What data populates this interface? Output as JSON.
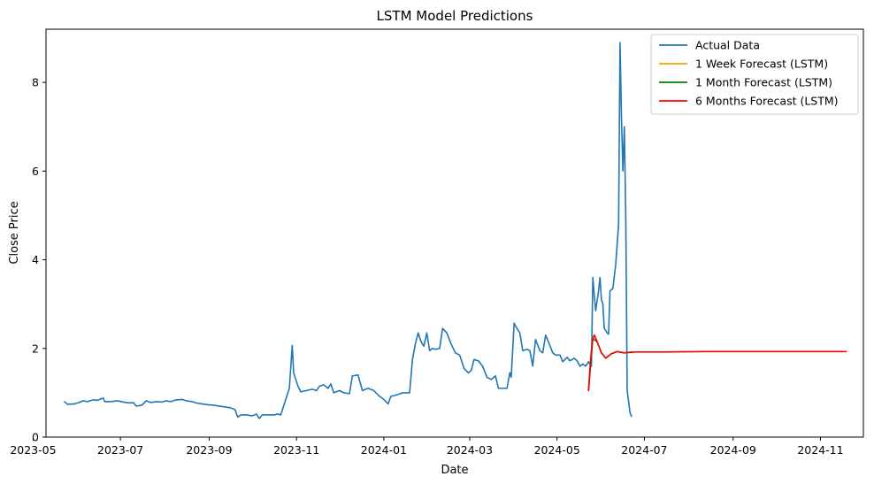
{
  "chart_data": {
    "type": "line",
    "title": "LSTM Model Predictions",
    "xlabel": "Date",
    "ylabel": "Close Price",
    "xlim": [
      "2023-05-10",
      "2024-12-01"
    ],
    "ylim": [
      0,
      9.2
    ],
    "x_ticks": [
      "2023-05",
      "2023-07",
      "2023-09",
      "2023-11",
      "2024-01",
      "2024-03",
      "2024-05",
      "2024-07",
      "2024-09",
      "2024-11"
    ],
    "y_ticks": [
      0,
      2,
      4,
      6,
      8
    ],
    "legend_position": "top-right",
    "grid": false,
    "series": [
      {
        "name": "Actual Data",
        "color": "#1f77b4",
        "points": [
          [
            "2023-05-23",
            0.8
          ],
          [
            "2023-05-25",
            0.74
          ],
          [
            "2023-05-30",
            0.75
          ],
          [
            "2023-06-02",
            0.78
          ],
          [
            "2023-06-05",
            0.82
          ],
          [
            "2023-06-08",
            0.8
          ],
          [
            "2023-06-12",
            0.84
          ],
          [
            "2023-06-15",
            0.83
          ],
          [
            "2023-06-19",
            0.88
          ],
          [
            "2023-06-20",
            0.8
          ],
          [
            "2023-06-24",
            0.8
          ],
          [
            "2023-06-29",
            0.82
          ],
          [
            "2023-07-03",
            0.79
          ],
          [
            "2023-07-07",
            0.77
          ],
          [
            "2023-07-10",
            0.78
          ],
          [
            "2023-07-12",
            0.7
          ],
          [
            "2023-07-16",
            0.72
          ],
          [
            "2023-07-19",
            0.82
          ],
          [
            "2023-07-22",
            0.78
          ],
          [
            "2023-07-26",
            0.8
          ],
          [
            "2023-07-30",
            0.79
          ],
          [
            "2023-08-02",
            0.82
          ],
          [
            "2023-08-05",
            0.8
          ],
          [
            "2023-08-09",
            0.84
          ],
          [
            "2023-08-13",
            0.85
          ],
          [
            "2023-08-16",
            0.82
          ],
          [
            "2023-08-20",
            0.8
          ],
          [
            "2023-08-23",
            0.77
          ],
          [
            "2023-08-27",
            0.75
          ],
          [
            "2023-08-31",
            0.73
          ],
          [
            "2023-09-04",
            0.72
          ],
          [
            "2023-09-08",
            0.7
          ],
          [
            "2023-09-12",
            0.68
          ],
          [
            "2023-09-16",
            0.66
          ],
          [
            "2023-09-19",
            0.62
          ],
          [
            "2023-09-21",
            0.45
          ],
          [
            "2023-09-23",
            0.5
          ],
          [
            "2023-09-27",
            0.5
          ],
          [
            "2023-10-01",
            0.48
          ],
          [
            "2023-10-04",
            0.52
          ],
          [
            "2023-10-06",
            0.42
          ],
          [
            "2023-10-08",
            0.5
          ],
          [
            "2023-10-12",
            0.5
          ],
          [
            "2023-10-16",
            0.5
          ],
          [
            "2023-10-19",
            0.52
          ],
          [
            "2023-10-21",
            0.5
          ],
          [
            "2023-10-24",
            0.8
          ],
          [
            "2023-10-27",
            1.1
          ],
          [
            "2023-10-29",
            2.07
          ],
          [
            "2023-10-30",
            1.45
          ],
          [
            "2023-11-02",
            1.15
          ],
          [
            "2023-11-04",
            1.02
          ],
          [
            "2023-11-08",
            1.05
          ],
          [
            "2023-11-12",
            1.08
          ],
          [
            "2023-11-15",
            1.05
          ],
          [
            "2023-11-17",
            1.15
          ],
          [
            "2023-11-20",
            1.18
          ],
          [
            "2023-11-23",
            1.1
          ],
          [
            "2023-11-25",
            1.2
          ],
          [
            "2023-11-27",
            1.0
          ],
          [
            "2023-12-01",
            1.05
          ],
          [
            "2023-12-04",
            1.0
          ],
          [
            "2023-12-08",
            0.98
          ],
          [
            "2023-12-10",
            1.38
          ],
          [
            "2023-12-14",
            1.4
          ],
          [
            "2023-12-17",
            1.05
          ],
          [
            "2023-12-21",
            1.1
          ],
          [
            "2023-12-25",
            1.05
          ],
          [
            "2023-12-29",
            0.92
          ],
          [
            "2024-01-01",
            0.85
          ],
          [
            "2024-01-04",
            0.75
          ],
          [
            "2024-01-06",
            0.92
          ],
          [
            "2024-01-10",
            0.95
          ],
          [
            "2024-01-14",
            1.0
          ],
          [
            "2024-01-19",
            1.0
          ],
          [
            "2024-01-21",
            1.75
          ],
          [
            "2024-01-23",
            2.1
          ],
          [
            "2024-01-25",
            2.35
          ],
          [
            "2024-01-27",
            2.15
          ],
          [
            "2024-01-29",
            2.05
          ],
          [
            "2024-01-31",
            2.35
          ],
          [
            "2024-02-02",
            1.95
          ],
          [
            "2024-02-04",
            2.0
          ],
          [
            "2024-02-06",
            1.98
          ],
          [
            "2024-02-09",
            2.0
          ],
          [
            "2024-02-11",
            2.45
          ],
          [
            "2024-02-14",
            2.35
          ],
          [
            "2024-02-17",
            2.1
          ],
          [
            "2024-02-20",
            1.9
          ],
          [
            "2024-02-23",
            1.85
          ],
          [
            "2024-02-26",
            1.55
          ],
          [
            "2024-02-29",
            1.45
          ],
          [
            "2024-03-02",
            1.5
          ],
          [
            "2024-03-04",
            1.75
          ],
          [
            "2024-03-07",
            1.72
          ],
          [
            "2024-03-10",
            1.6
          ],
          [
            "2024-03-13",
            1.35
          ],
          [
            "2024-03-16",
            1.3
          ],
          [
            "2024-03-19",
            1.38
          ],
          [
            "2024-03-21",
            1.1
          ],
          [
            "2024-03-24",
            1.1
          ],
          [
            "2024-03-27",
            1.1
          ],
          [
            "2024-03-29",
            1.45
          ],
          [
            "2024-03-30",
            1.35
          ],
          [
            "2024-04-01",
            2.57
          ],
          [
            "2024-04-03",
            2.45
          ],
          [
            "2024-04-05",
            2.35
          ],
          [
            "2024-04-07",
            1.95
          ],
          [
            "2024-04-10",
            1.98
          ],
          [
            "2024-04-12",
            1.95
          ],
          [
            "2024-04-14",
            1.6
          ],
          [
            "2024-04-16",
            2.2
          ],
          [
            "2024-04-19",
            1.95
          ],
          [
            "2024-04-21",
            1.9
          ],
          [
            "2024-04-23",
            2.3
          ],
          [
            "2024-04-25",
            2.15
          ],
          [
            "2024-04-28",
            1.9
          ],
          [
            "2024-04-30",
            1.85
          ],
          [
            "2024-05-03",
            1.85
          ],
          [
            "2024-05-05",
            1.7
          ],
          [
            "2024-05-08",
            1.8
          ],
          [
            "2024-05-10",
            1.72
          ],
          [
            "2024-05-13",
            1.78
          ],
          [
            "2024-05-15",
            1.72
          ],
          [
            "2024-05-17",
            1.6
          ],
          [
            "2024-05-19",
            1.65
          ],
          [
            "2024-05-21",
            1.6
          ],
          [
            "2024-05-23",
            1.7
          ],
          [
            "2024-05-25",
            1.6
          ],
          [
            "2024-05-26",
            3.6
          ],
          [
            "2024-05-27",
            3.2
          ],
          [
            "2024-05-28",
            2.85
          ],
          [
            "2024-05-30",
            3.3
          ],
          [
            "2024-05-31",
            3.6
          ],
          [
            "2024-06-01",
            3.1
          ],
          [
            "2024-06-02",
            3.0
          ],
          [
            "2024-06-03",
            2.45
          ],
          [
            "2024-06-05",
            2.35
          ],
          [
            "2024-06-06",
            2.32
          ],
          [
            "2024-06-07",
            3.3
          ],
          [
            "2024-06-09",
            3.35
          ],
          [
            "2024-06-11",
            3.9
          ],
          [
            "2024-06-13",
            4.8
          ],
          [
            "2024-06-14",
            8.9
          ],
          [
            "2024-06-15",
            7.2
          ],
          [
            "2024-06-16",
            6.0
          ],
          [
            "2024-06-17",
            7.0
          ],
          [
            "2024-06-18",
            5.0
          ],
          [
            "2024-06-19",
            1.05
          ],
          [
            "2024-06-20",
            0.8
          ],
          [
            "2024-06-21",
            0.55
          ],
          [
            "2024-06-22",
            0.47
          ]
        ]
      },
      {
        "name": "1 Week Forecast (LSTM)",
        "color": "#ff9f00",
        "points": [
          [
            "2024-05-23",
            1.05
          ],
          [
            "2024-05-24",
            1.55
          ],
          [
            "2024-05-25",
            1.95
          ],
          [
            "2024-05-26",
            2.22
          ],
          [
            "2024-05-27",
            2.3
          ],
          [
            "2024-05-28",
            2.25
          ],
          [
            "2024-05-29",
            2.15
          ]
        ]
      },
      {
        "name": "1 Month Forecast (LSTM)",
        "color": "#008000",
        "points": [
          [
            "2024-05-23",
            1.05
          ],
          [
            "2024-05-26",
            2.22
          ],
          [
            "2024-05-29",
            2.15
          ],
          [
            "2024-06-01",
            1.9
          ],
          [
            "2024-06-04",
            1.78
          ],
          [
            "2024-06-08",
            1.88
          ],
          [
            "2024-06-12",
            1.93
          ],
          [
            "2024-06-17",
            1.9
          ],
          [
            "2024-06-22",
            1.92
          ]
        ]
      },
      {
        "name": "6 Months Forecast (LSTM)",
        "color": "#ff0000",
        "points": [
          [
            "2024-05-23",
            1.05
          ],
          [
            "2024-05-24",
            1.55
          ],
          [
            "2024-05-25",
            1.95
          ],
          [
            "2024-05-26",
            2.22
          ],
          [
            "2024-05-27",
            2.3
          ],
          [
            "2024-05-29",
            2.15
          ],
          [
            "2024-06-01",
            1.9
          ],
          [
            "2024-06-04",
            1.78
          ],
          [
            "2024-06-08",
            1.88
          ],
          [
            "2024-06-12",
            1.93
          ],
          [
            "2024-06-17",
            1.9
          ],
          [
            "2024-06-25",
            1.92
          ],
          [
            "2024-07-15",
            1.92
          ],
          [
            "2024-08-15",
            1.93
          ],
          [
            "2024-09-15",
            1.93
          ],
          [
            "2024-10-15",
            1.93
          ],
          [
            "2024-11-19",
            1.93
          ]
        ]
      }
    ]
  }
}
